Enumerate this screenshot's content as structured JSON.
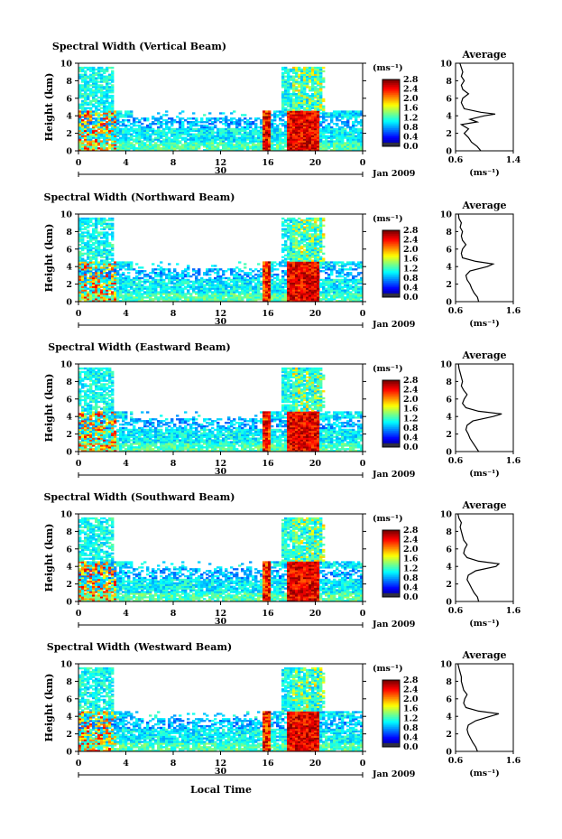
{
  "chart_data": [
    {
      "type": "heatmap",
      "title": "Spectral Width (Vertical Beam)",
      "ylabel": "Height (km)",
      "ylim": [
        0,
        10
      ],
      "yticks": [
        "0",
        "2",
        "4",
        "6",
        "8",
        "10"
      ],
      "xticks": [
        "0",
        "4",
        "8",
        "12",
        "16",
        "20",
        "0"
      ],
      "date_labels": [
        "30",
        "Jan 2009"
      ],
      "colorbar": {
        "unit": "(ms⁻¹)",
        "ticks": [
          "0.0",
          "0.4",
          "0.8",
          "1.2",
          "1.6",
          "2.0",
          "2.4",
          "2.8"
        ]
      },
      "average": {
        "title": "Average",
        "xlabel": "(ms⁻¹)",
        "xticks": [
          "0.6",
          "1.4"
        ],
        "xlim": [
          0.6,
          1.4
        ],
        "profile": [
          [
            0.0,
            0.95
          ],
          [
            0.5,
            0.9
          ],
          [
            1.0,
            0.82
          ],
          [
            1.5,
            0.78
          ],
          [
            2.0,
            0.72
          ],
          [
            2.5,
            0.78
          ],
          [
            3.0,
            0.68
          ],
          [
            3.3,
            0.9
          ],
          [
            3.6,
            0.8
          ],
          [
            4.0,
            1.0
          ],
          [
            4.2,
            1.15
          ],
          [
            4.4,
            0.95
          ],
          [
            4.8,
            0.72
          ],
          [
            5.5,
            0.68
          ],
          [
            6.0,
            0.7
          ],
          [
            6.5,
            0.78
          ],
          [
            7.0,
            0.7
          ],
          [
            7.5,
            0.68
          ],
          [
            8.0,
            0.72
          ],
          [
            8.5,
            0.68
          ],
          [
            9.0,
            0.7
          ],
          [
            9.5,
            0.68
          ],
          [
            10.0,
            0.66
          ]
        ]
      }
    },
    {
      "type": "heatmap",
      "title": "Spectral Width (Northward Beam)",
      "ylabel": "Height (km)",
      "ylim": [
        0,
        10
      ],
      "yticks": [
        "0",
        "2",
        "4",
        "6",
        "8",
        "10"
      ],
      "xticks": [
        "0",
        "4",
        "8",
        "12",
        "16",
        "20",
        "0"
      ],
      "date_labels": [
        "30",
        "Jan 2009"
      ],
      "colorbar": {
        "unit": "(ms⁻¹)",
        "ticks": [
          "0.0",
          "0.4",
          "0.8",
          "1.2",
          "1.6",
          "2.0",
          "2.4",
          "2.8"
        ]
      },
      "average": {
        "title": "Average",
        "xlabel": "(ms⁻¹)",
        "xticks": [
          "0.6",
          "1.6"
        ],
        "xlim": [
          0.6,
          1.6
        ],
        "profile": [
          [
            0.0,
            1.0
          ],
          [
            0.5,
            0.98
          ],
          [
            1.0,
            0.92
          ],
          [
            1.5,
            0.88
          ],
          [
            2.0,
            0.85
          ],
          [
            2.5,
            0.8
          ],
          [
            3.0,
            0.78
          ],
          [
            3.5,
            0.85
          ],
          [
            4.0,
            1.15
          ],
          [
            4.3,
            1.25
          ],
          [
            4.6,
            0.95
          ],
          [
            5.0,
            0.72
          ],
          [
            5.5,
            0.7
          ],
          [
            6.0,
            0.72
          ],
          [
            6.5,
            0.78
          ],
          [
            7.0,
            0.72
          ],
          [
            7.5,
            0.7
          ],
          [
            8.0,
            0.72
          ],
          [
            8.5,
            0.68
          ],
          [
            9.0,
            0.7
          ],
          [
            9.5,
            0.66
          ],
          [
            10.0,
            0.65
          ]
        ]
      }
    },
    {
      "type": "heatmap",
      "title": "Spectral Width (Eastward Beam)",
      "ylabel": "Height (km)",
      "ylim": [
        0,
        10
      ],
      "yticks": [
        "0",
        "2",
        "4",
        "6",
        "8",
        "10"
      ],
      "xticks": [
        "0",
        "4",
        "8",
        "12",
        "16",
        "20",
        "0"
      ],
      "date_labels": [
        "30",
        "Jan 2009"
      ],
      "colorbar": {
        "unit": "(ms⁻¹)",
        "ticks": [
          "0.0",
          "0.4",
          "0.8",
          "1.2",
          "1.6",
          "2.0",
          "2.4",
          "2.8"
        ]
      },
      "average": {
        "title": "Average",
        "xlabel": "(ms⁻¹)",
        "xticks": [
          "0.6",
          "1.6"
        ],
        "xlim": [
          0.6,
          1.6
        ],
        "profile": [
          [
            0.0,
            1.0
          ],
          [
            0.5,
            0.95
          ],
          [
            1.0,
            0.9
          ],
          [
            1.5,
            0.85
          ],
          [
            2.0,
            0.82
          ],
          [
            2.5,
            0.78
          ],
          [
            3.0,
            0.8
          ],
          [
            3.5,
            0.9
          ],
          [
            4.0,
            1.25
          ],
          [
            4.3,
            1.4
          ],
          [
            4.6,
            1.0
          ],
          [
            5.0,
            0.78
          ],
          [
            5.5,
            0.72
          ],
          [
            6.0,
            0.75
          ],
          [
            6.5,
            0.8
          ],
          [
            7.0,
            0.74
          ],
          [
            7.5,
            0.7
          ],
          [
            8.0,
            0.72
          ],
          [
            8.5,
            0.7
          ],
          [
            9.0,
            0.68
          ],
          [
            9.5,
            0.66
          ],
          [
            10.0,
            0.65
          ]
        ]
      }
    },
    {
      "type": "heatmap",
      "title": "Spectral Width (Southward Beam)",
      "ylabel": "Height (km)",
      "ylim": [
        0,
        10
      ],
      "yticks": [
        "0",
        "2",
        "4",
        "6",
        "8",
        "10"
      ],
      "xticks": [
        "0",
        "4",
        "8",
        "12",
        "16",
        "20",
        "0"
      ],
      "date_labels": [
        "30",
        "Jan 2009"
      ],
      "colorbar": {
        "unit": "(ms⁻¹)",
        "ticks": [
          "0.0",
          "0.4",
          "0.8",
          "1.2",
          "1.6",
          "2.0",
          "2.4",
          "2.8"
        ]
      },
      "average": {
        "title": "Average",
        "xlabel": "(ms⁻¹)",
        "xticks": [
          "0.6",
          "1.6"
        ],
        "xlim": [
          0.6,
          1.6
        ],
        "profile": [
          [
            0.0,
            1.0
          ],
          [
            0.5,
            0.98
          ],
          [
            1.0,
            0.92
          ],
          [
            1.5,
            0.88
          ],
          [
            2.0,
            0.84
          ],
          [
            2.5,
            0.8
          ],
          [
            3.0,
            0.82
          ],
          [
            3.5,
            0.95
          ],
          [
            4.0,
            1.3
          ],
          [
            4.3,
            1.35
          ],
          [
            4.6,
            1.0
          ],
          [
            5.0,
            0.8
          ],
          [
            5.5,
            0.74
          ],
          [
            6.0,
            0.76
          ],
          [
            6.5,
            0.8
          ],
          [
            7.0,
            0.74
          ],
          [
            7.5,
            0.72
          ],
          [
            8.0,
            0.7
          ],
          [
            8.5,
            0.68
          ],
          [
            9.0,
            0.7
          ],
          [
            9.5,
            0.66
          ],
          [
            10.0,
            0.64
          ]
        ]
      }
    },
    {
      "type": "heatmap",
      "title": "Spectral Width (Westward Beam)",
      "ylabel": "Height (km)",
      "ylim": [
        0,
        10
      ],
      "yticks": [
        "0",
        "2",
        "4",
        "6",
        "8",
        "10"
      ],
      "xticks": [
        "0",
        "4",
        "8",
        "12",
        "16",
        "20",
        "0"
      ],
      "date_labels": [
        "30",
        "Jan 2009"
      ],
      "colorbar": {
        "unit": "(ms⁻¹)",
        "ticks": [
          "0.0",
          "0.4",
          "0.8",
          "1.2",
          "1.6",
          "2.0",
          "2.4",
          "2.8"
        ]
      },
      "average": {
        "title": "Average",
        "xlabel": "(ms⁻¹)",
        "xticks": [
          "0.6",
          "1.6"
        ],
        "xlim": [
          0.6,
          1.6
        ],
        "profile": [
          [
            0.0,
            0.98
          ],
          [
            0.5,
            0.95
          ],
          [
            1.0,
            0.9
          ],
          [
            1.5,
            0.86
          ],
          [
            2.0,
            0.82
          ],
          [
            2.5,
            0.8
          ],
          [
            3.0,
            0.82
          ],
          [
            3.5,
            0.95
          ],
          [
            4.0,
            1.2
          ],
          [
            4.3,
            1.35
          ],
          [
            4.6,
            1.0
          ],
          [
            5.0,
            0.78
          ],
          [
            5.5,
            0.74
          ],
          [
            6.0,
            0.76
          ],
          [
            6.5,
            0.8
          ],
          [
            7.0,
            0.74
          ],
          [
            7.5,
            0.72
          ],
          [
            8.0,
            0.7
          ],
          [
            8.5,
            0.7
          ],
          [
            9.0,
            0.68
          ],
          [
            9.5,
            0.66
          ],
          [
            10.0,
            0.64
          ]
        ]
      }
    }
  ],
  "xlabel": "Local Time"
}
